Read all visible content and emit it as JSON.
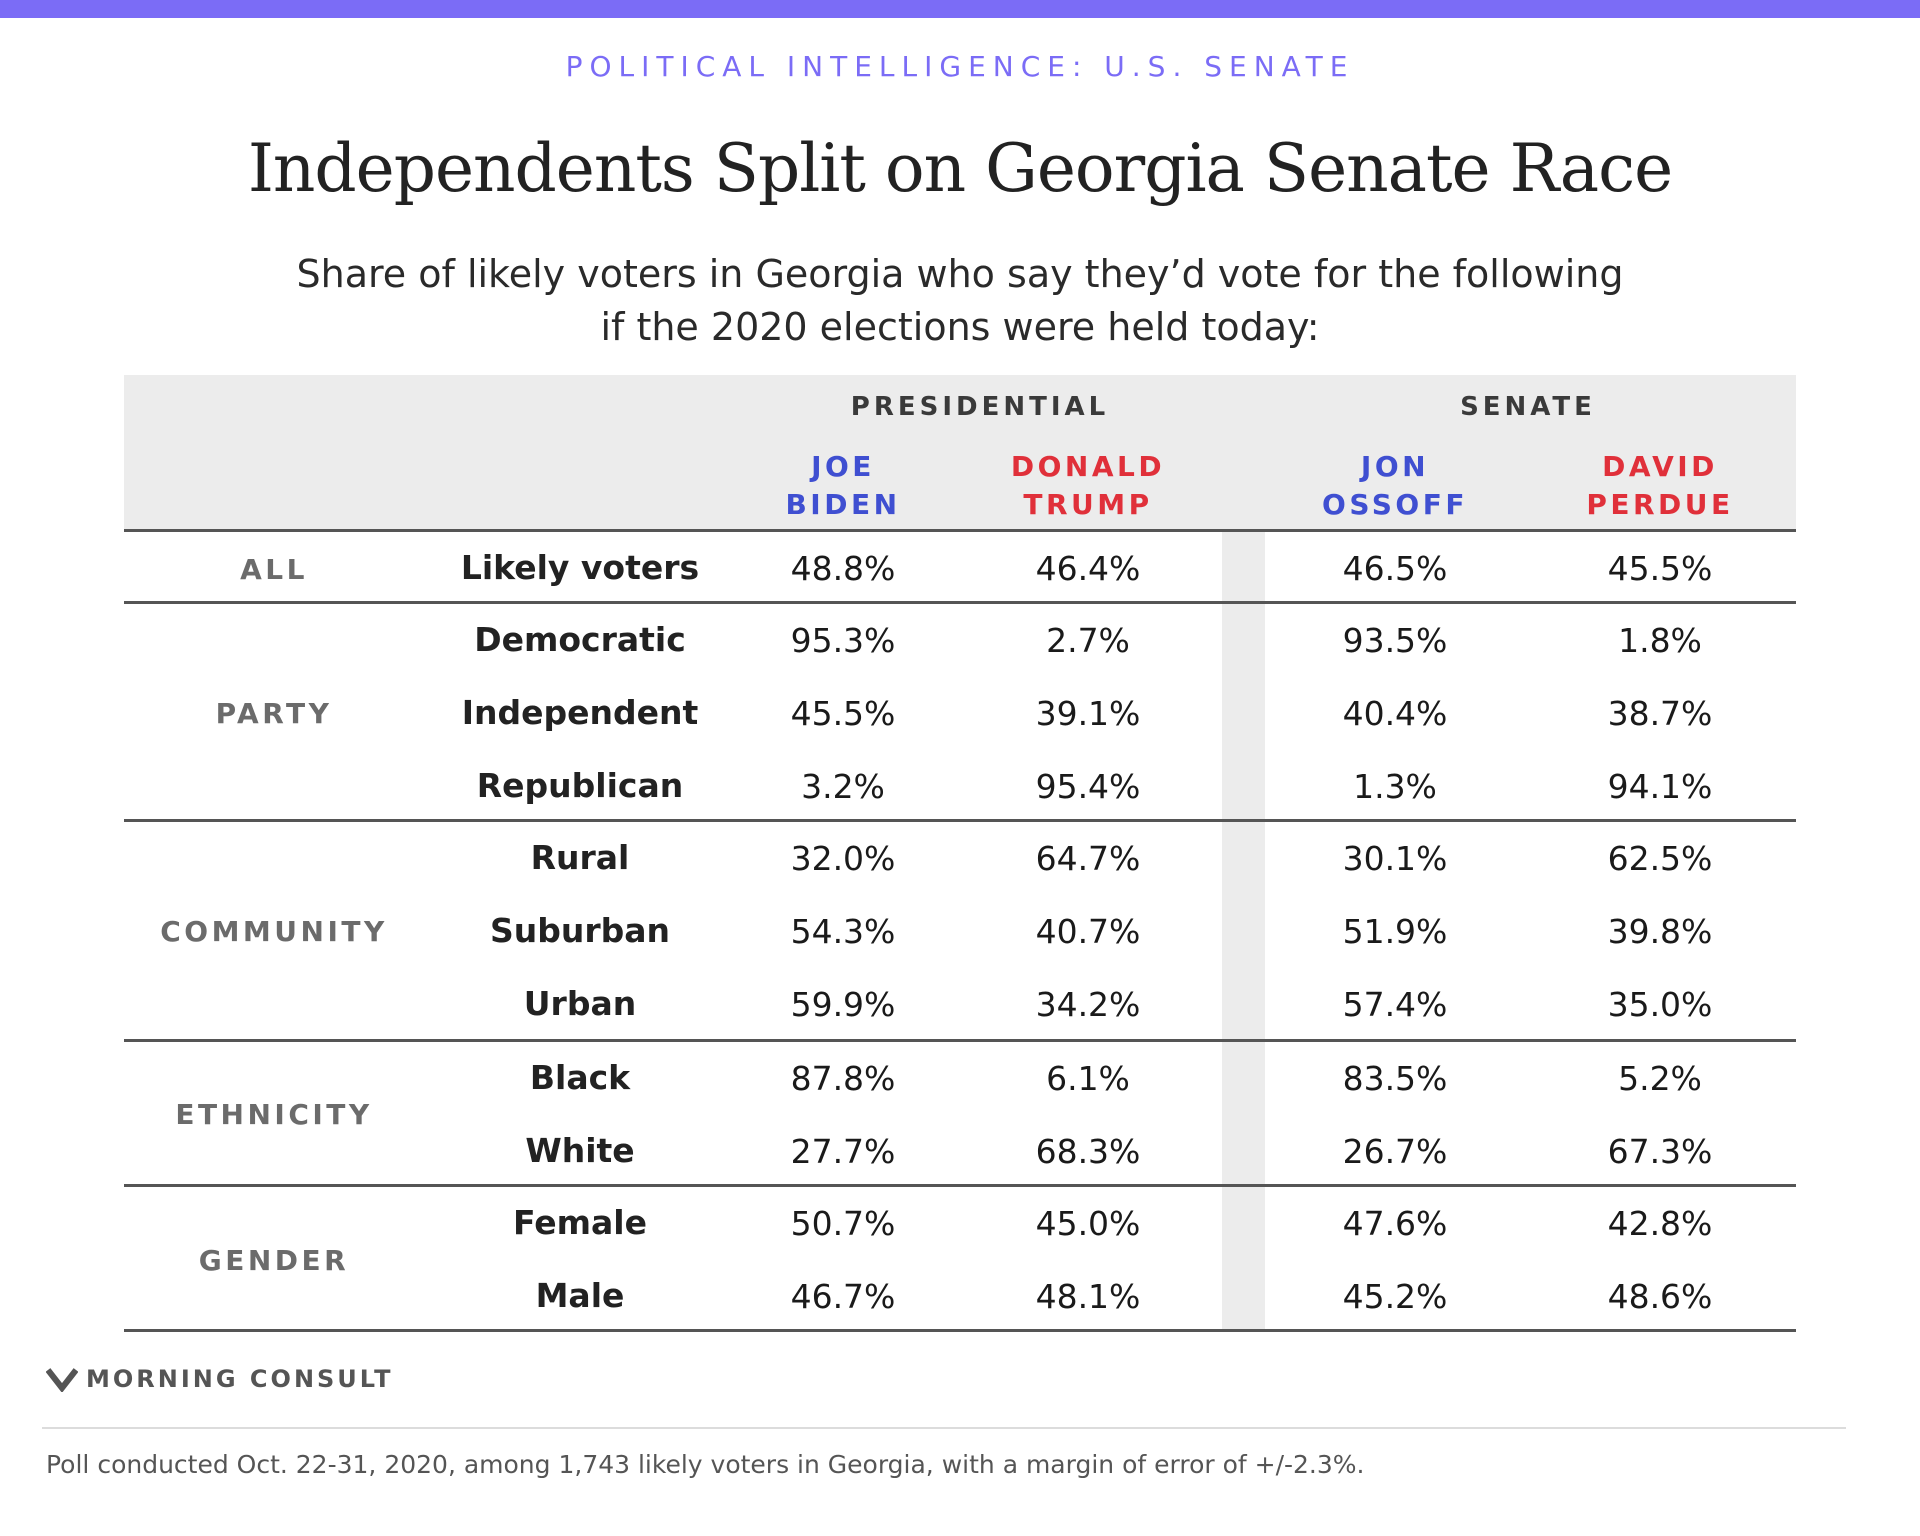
{
  "header": {
    "kicker": "POLITICAL INTELLIGENCE: U.S. SENATE",
    "title": "Independents Split on Georgia Senate Race",
    "subtitle_line1": "Share of likely voters in Georgia who say they’d vote for the following",
    "subtitle_line2": "if the 2020 elections were held today:"
  },
  "colors": {
    "accent": "#7b6cf6",
    "democrat": "#3f4fd1",
    "republican": "#e0303a",
    "header_band": "#ececec"
  },
  "chart_data": {
    "type": "table",
    "groups": [
      "PRESIDENTIAL",
      "SENATE"
    ],
    "columns": [
      {
        "group": "PRESIDENTIAL",
        "line1": "JOE",
        "line2": "BIDEN",
        "party": "democrat"
      },
      {
        "group": "PRESIDENTIAL",
        "line1": "DONALD",
        "line2": "TRUMP",
        "party": "republican"
      },
      {
        "group": "SENATE",
        "line1": "JON",
        "line2": "OSSOFF",
        "party": "democrat"
      },
      {
        "group": "SENATE",
        "line1": "DAVID",
        "line2": "PERDUE",
        "party": "republican"
      }
    ],
    "categories": [
      {
        "name": "ALL",
        "rows": [
          {
            "label": "Likely voters",
            "values": [
              "48.8%",
              "46.4%",
              "46.5%",
              "45.5%"
            ]
          }
        ]
      },
      {
        "name": "PARTY",
        "rows": [
          {
            "label": "Democratic",
            "values": [
              "95.3%",
              "2.7%",
              "93.5%",
              "1.8%"
            ]
          },
          {
            "label": "Independent",
            "values": [
              "45.5%",
              "39.1%",
              "40.4%",
              "38.7%"
            ]
          },
          {
            "label": "Republican",
            "values": [
              "3.2%",
              "95.4%",
              "1.3%",
              "94.1%"
            ]
          }
        ]
      },
      {
        "name": "COMMUNITY",
        "rows": [
          {
            "label": "Rural",
            "values": [
              "32.0%",
              "64.7%",
              "30.1%",
              "62.5%"
            ]
          },
          {
            "label": "Suburban",
            "values": [
              "54.3%",
              "40.7%",
              "51.9%",
              "39.8%"
            ]
          },
          {
            "label": "Urban",
            "values": [
              "59.9%",
              "34.2%",
              "57.4%",
              "35.0%"
            ]
          }
        ]
      },
      {
        "name": "ETHNICITY",
        "rows": [
          {
            "label": "Black",
            "values": [
              "87.8%",
              "6.1%",
              "83.5%",
              "5.2%"
            ]
          },
          {
            "label": "White",
            "values": [
              "27.7%",
              "68.3%",
              "26.7%",
              "67.3%"
            ]
          }
        ]
      },
      {
        "name": "GENDER",
        "rows": [
          {
            "label": "Female",
            "values": [
              "50.7%",
              "45.0%",
              "47.6%",
              "42.8%"
            ]
          },
          {
            "label": "Male",
            "values": [
              "46.7%",
              "48.1%",
              "45.2%",
              "48.6%"
            ]
          }
        ]
      }
    ]
  },
  "footer": {
    "logo_text": "MORNING CONSULT",
    "logo_icon": "morning-consult-chevron-icon",
    "note": "Poll conducted Oct. 22-31, 2020, among 1,743 likely voters in Georgia, with a margin of error of +/-2.3%."
  }
}
